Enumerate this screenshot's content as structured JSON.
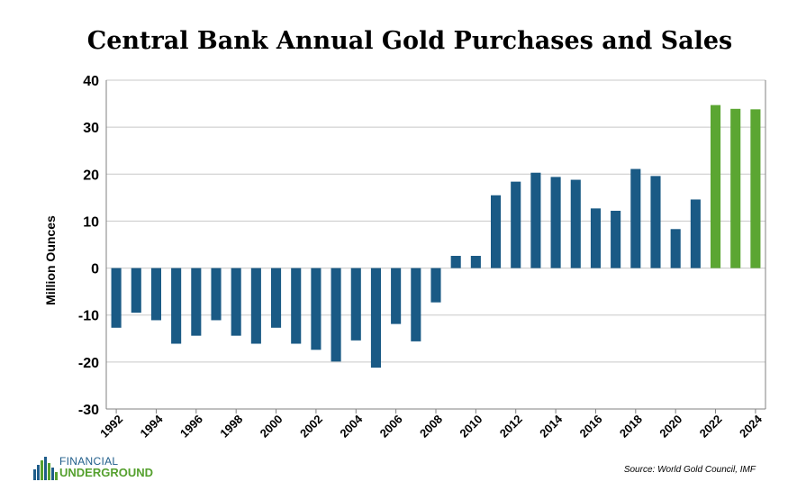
{
  "title": "Central Bank Annual Gold Purchases and Sales",
  "source": "Source: World Gold Council, IMF",
  "logo": {
    "line1": "FINANCIAL",
    "line2": "UNDERGROUND",
    "icon": "city-skyline-bars-icon"
  },
  "colors": {
    "sales_bar": "#1a5a85",
    "recent_bar": "#5ba632",
    "grid": "#c8c8c8",
    "axis": "#808080"
  },
  "chart_data": {
    "type": "bar",
    "title": "Central Bank Annual Gold Purchases and Sales",
    "xlabel": "",
    "ylabel": "Million Ounces",
    "ylim": [
      -30,
      40
    ],
    "yticks": [
      40,
      30,
      20,
      10,
      0,
      -10,
      -20,
      -30
    ],
    "grid": true,
    "x_tick_labels": [
      "1992",
      "1994",
      "1996",
      "1998",
      "2000",
      "2002",
      "2004",
      "2006",
      "2008",
      "2010",
      "2012",
      "2014",
      "2016",
      "2018",
      "2020",
      "2022",
      "2024"
    ],
    "categories": [
      "1992",
      "1993",
      "1994",
      "1995",
      "1996",
      "1997",
      "1998",
      "1999",
      "2000",
      "2001",
      "2002",
      "2003",
      "2004",
      "2005",
      "2006",
      "2007",
      "2008",
      "2009",
      "2010",
      "2011",
      "2012",
      "2013",
      "2014",
      "2015",
      "2016",
      "2017",
      "2018",
      "2019",
      "2020",
      "2021",
      "2022",
      "2023",
      "2024"
    ],
    "values": [
      -12.7,
      -9.5,
      -11.1,
      -16.1,
      -14.4,
      -11.1,
      -14.4,
      -16.1,
      -12.7,
      -16.1,
      -17.4,
      -19.9,
      -15.4,
      -21.2,
      -11.9,
      -15.6,
      -7.3,
      2.6,
      2.6,
      15.5,
      18.4,
      20.3,
      19.4,
      18.8,
      12.7,
      12.2,
      21.1,
      19.6,
      8.3,
      14.6,
      34.7,
      33.9,
      33.8
    ],
    "series_colors": [
      "#1a5a85",
      "#1a5a85",
      "#1a5a85",
      "#1a5a85",
      "#1a5a85",
      "#1a5a85",
      "#1a5a85",
      "#1a5a85",
      "#1a5a85",
      "#1a5a85",
      "#1a5a85",
      "#1a5a85",
      "#1a5a85",
      "#1a5a85",
      "#1a5a85",
      "#1a5a85",
      "#1a5a85",
      "#1a5a85",
      "#1a5a85",
      "#1a5a85",
      "#1a5a85",
      "#1a5a85",
      "#1a5a85",
      "#1a5a85",
      "#1a5a85",
      "#1a5a85",
      "#1a5a85",
      "#1a5a85",
      "#1a5a85",
      "#1a5a85",
      "#5ba632",
      "#5ba632",
      "#5ba632"
    ]
  }
}
